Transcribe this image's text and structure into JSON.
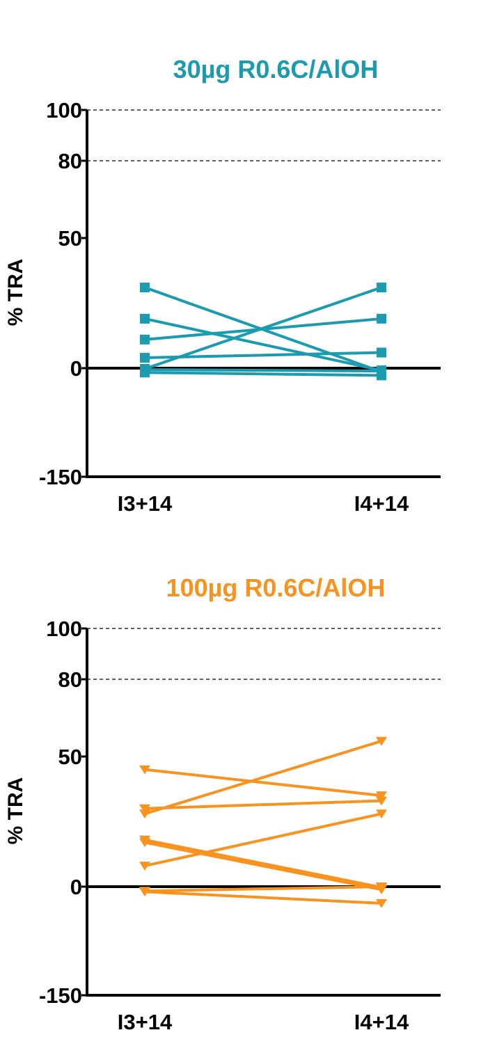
{
  "chart_data": [
    {
      "type": "line",
      "title": "30µg  R0.6C/AlOH",
      "color": "#1a9bb0",
      "marker": "square",
      "ylabel": "% TRA",
      "xlabel": "",
      "categories": [
        "I3+14",
        "I4+14"
      ],
      "yticks": [
        100,
        80,
        50,
        0,
        -150
      ],
      "ylim": [
        -150,
        100
      ],
      "grid": {
        "dashed_at": [
          100,
          80
        ]
      },
      "series": [
        {
          "values": [
            31,
            -5
          ]
        },
        {
          "values": [
            19,
            -3
          ]
        },
        {
          "values": [
            11,
            19
          ]
        },
        {
          "values": [
            4,
            6
          ]
        },
        {
          "values": [
            -1,
            31
          ]
        },
        {
          "values": [
            -2,
            -4
          ]
        },
        {
          "values": [
            -6,
            -10
          ]
        }
      ]
    },
    {
      "type": "line",
      "title": "100µg R0.6C/AlOH",
      "color": "#f7931e",
      "marker": "triangle-down",
      "ylabel": "% TRA",
      "xlabel": "",
      "categories": [
        "I3+14",
        "I4+14"
      ],
      "yticks": [
        100,
        80,
        50,
        0,
        -150
      ],
      "ylim": [
        -150,
        100
      ],
      "grid": {
        "dashed_at": [
          100,
          80
        ]
      },
      "series": [
        {
          "values": [
            45,
            35
          ]
        },
        {
          "values": [
            30,
            33
          ]
        },
        {
          "values": [
            28,
            56
          ]
        },
        {
          "values": [
            18,
            -1
          ]
        },
        {
          "values": [
            17,
            -4
          ]
        },
        {
          "values": [
            8,
            28
          ]
        },
        {
          "values": [
            -6,
            0
          ]
        },
        {
          "values": [
            -7,
            -23
          ]
        }
      ]
    }
  ]
}
